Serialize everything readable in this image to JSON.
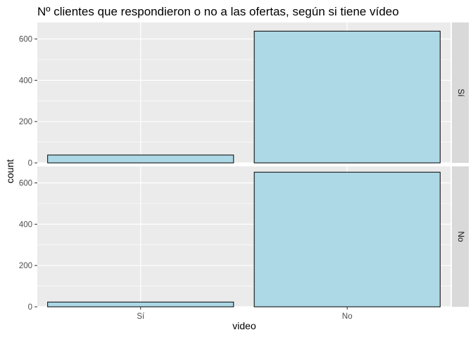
{
  "chart_data": {
    "type": "bar",
    "title": "Nº clientes que respondieron o no a las ofertas, según si tiene  vídeo",
    "xlabel": "video",
    "ylabel": "count",
    "categories": [
      "Sí",
      "No"
    ],
    "ylim": [
      0,
      680
    ],
    "yticks": [
      0,
      200,
      400,
      600
    ],
    "grid": true,
    "bar_fill": "#ADD8E6",
    "bar_stroke": "#000000",
    "panel_background": "#EBEBEB",
    "strip_background": "#D9D9D9",
    "facets": [
      {
        "label": "Sí",
        "values": [
          38,
          638
        ]
      },
      {
        "label": "No",
        "values": [
          23,
          652
        ]
      }
    ]
  }
}
